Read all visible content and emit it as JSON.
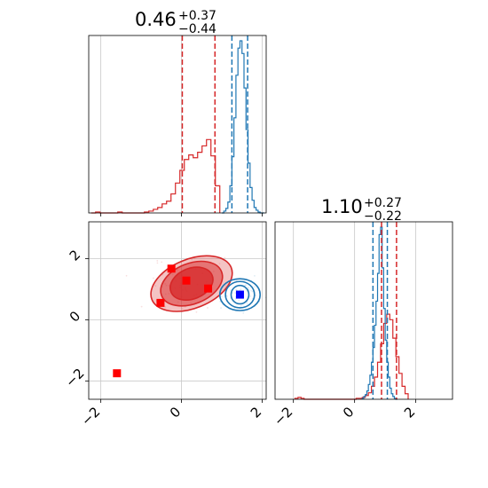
{
  "chart_data": [
    {
      "type": "histogram",
      "panel": "marginal-1",
      "title": {
        "value": "0.46",
        "upper": "+0.37",
        "lower": "−0.44"
      },
      "xlim": [
        -2.3,
        2.1
      ],
      "grid": true,
      "series": [
        {
          "color": "#d62728",
          "bin_edges": [
            -2.24,
            -2.13,
            -2.02,
            -1.91,
            -1.8,
            -1.69,
            -1.58,
            -1.47,
            -1.36,
            -1.25,
            -1.14,
            -1.03,
            -0.92,
            -0.81,
            -0.7,
            -0.59,
            -0.48,
            -0.37,
            -0.26,
            -0.15,
            -0.04,
            0.07,
            0.18,
            0.29,
            0.4,
            0.51,
            0.62,
            0.73,
            0.84,
            0.95
          ],
          "counts": [
            0,
            1,
            0,
            0,
            0,
            0,
            1,
            0,
            0,
            0,
            0,
            0,
            1,
            2,
            4,
            6,
            10,
            13,
            21,
            33,
            47,
            59,
            64,
            61,
            67,
            74,
            81,
            63,
            30
          ]
        },
        {
          "color": "#1f77b4",
          "bin_edges": [
            1.0,
            1.05,
            1.1,
            1.15,
            1.2,
            1.25,
            1.3,
            1.35,
            1.4,
            1.45,
            1.5,
            1.55,
            1.6,
            1.65,
            1.7,
            1.75,
            1.8,
            1.85,
            1.9,
            1.95,
            2.0,
            2.05
          ],
          "counts": [
            0,
            2,
            5,
            12,
            30,
            62,
            105,
            152,
            182,
            190,
            176,
            138,
            92,
            55,
            28,
            14,
            6,
            3,
            1,
            0,
            0
          ]
        }
      ],
      "quantile_lines": [
        {
          "color": "#d62728",
          "x": [
            0.02,
            0.83
          ]
        },
        {
          "color": "#1f77b4",
          "x": [
            1.25,
            1.64
          ]
        }
      ]
    },
    {
      "type": "contour",
      "panel": "joint",
      "xlim": [
        -2.3,
        2.1
      ],
      "ylim": [
        -2.6,
        3.2
      ],
      "xticks": [
        -2,
        0,
        2
      ],
      "yticks": [
        -2,
        0,
        2
      ],
      "tick_labels": {
        "x": [
          "−2",
          "0",
          "2"
        ],
        "y": [
          "−2",
          "0",
          "2"
        ]
      },
      "grid": true,
      "series": [
        {
          "color": "#d62728",
          "center": [
            0.25,
            1.18
          ],
          "contours": [
            {
              "rx": 0.55,
              "ry": 0.5,
              "angle": -22
            },
            {
              "rx": 0.8,
              "ry": 0.66,
              "angle": -22
            },
            {
              "rx": 1.06,
              "ry": 0.8,
              "angle": -22
            }
          ],
          "markers": [
            {
              "x": -0.25,
              "y": 1.67
            },
            {
              "x": 0.12,
              "y": 1.28
            },
            {
              "x": 0.66,
              "y": 1.02
            },
            {
              "x": -0.52,
              "y": 0.55
            },
            {
              "x": -1.6,
              "y": -1.75
            }
          ]
        },
        {
          "color": "#1f77b4",
          "center": [
            1.45,
            0.82
          ],
          "contours": [
            {
              "rx": 0.22,
              "ry": 0.3,
              "angle": 0
            },
            {
              "rx": 0.36,
              "ry": 0.43,
              "angle": 0
            },
            {
              "rx": 0.5,
              "ry": 0.52,
              "angle": 0
            }
          ],
          "markers": [
            {
              "x": 1.45,
              "y": 0.82
            }
          ]
        }
      ]
    },
    {
      "type": "histogram",
      "panel": "marginal-2",
      "title": {
        "value": "1.10",
        "upper": "+0.27",
        "lower": "−0.22"
      },
      "xlim": [
        -2.6,
        3.2
      ],
      "xticks": [
        -2,
        0,
        2
      ],
      "tick_labels": {
        "x": [
          "−2",
          "0",
          "2"
        ]
      },
      "grid": true,
      "series": [
        {
          "color": "#d62728",
          "bin_edges": [
            -1.95,
            -1.85,
            -1.75,
            -1.65,
            -1.55,
            -1.45,
            -1.35,
            -1.25,
            -1.15,
            -1.05,
            -0.95,
            -0.85,
            -0.75,
            -0.65,
            -0.55,
            -0.45,
            -0.35,
            -0.25,
            -0.15,
            -0.05,
            0.05,
            0.15,
            0.25,
            0.35,
            0.45,
            0.55,
            0.65,
            0.75,
            0.85,
            0.95,
            1.05,
            1.15,
            1.25,
            1.35,
            1.45,
            1.55,
            1.65,
            1.75
          ],
          "counts": [
            1,
            2,
            1,
            0,
            0,
            0,
            0,
            0,
            0,
            0,
            0,
            0,
            0,
            0,
            0,
            0,
            0,
            0,
            0,
            0,
            1,
            1,
            2,
            4,
            7,
            14,
            24,
            40,
            60,
            82,
            92,
            86,
            66,
            46,
            28,
            14,
            6
          ]
        },
        {
          "color": "#1f77b4",
          "bin_edges": [
            0.25,
            0.3,
            0.35,
            0.4,
            0.45,
            0.5,
            0.55,
            0.6,
            0.65,
            0.7,
            0.75,
            0.8,
            0.85,
            0.9,
            0.95,
            1.0,
            1.05,
            1.1,
            1.15,
            1.2,
            1.25,
            1.3,
            1.35,
            1.4
          ],
          "counts": [
            1,
            3,
            5,
            9,
            16,
            26,
            40,
            56,
            80,
            106,
            136,
            178,
            186,
            142,
            98,
            64,
            40,
            24,
            12,
            6,
            3,
            1,
            0
          ]
        }
      ],
      "quantile_lines": [
        {
          "color": "#d62728",
          "x": [
            0.88,
            1.37
          ]
        },
        {
          "color": "#1f77b4",
          "x": [
            0.6,
            1.07
          ]
        }
      ]
    }
  ]
}
